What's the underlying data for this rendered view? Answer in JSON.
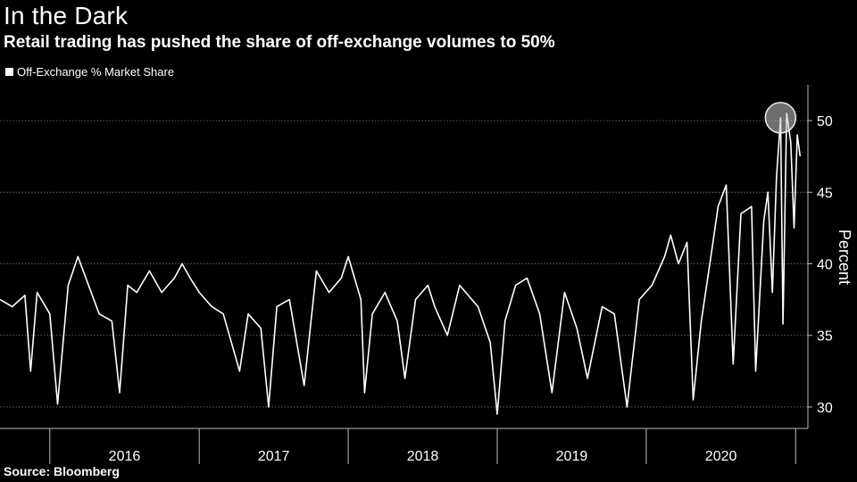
{
  "chart_data": {
    "type": "line",
    "title": "In the Dark",
    "subtitle": "Retail trading has pushed the share of off-exchange volumes to 50%",
    "ylabel": "Percent",
    "xlabel": "",
    "ylim": [
      28.5,
      52.5
    ],
    "yticks": [
      30,
      35,
      40,
      45,
      50
    ],
    "x_categories": [
      "2016",
      "2017",
      "2018",
      "2019",
      "2020"
    ],
    "x_range": [
      "2015-09-01",
      "2021-01-31"
    ],
    "grid": true,
    "legend_position": "top-left",
    "highlight": {
      "date": "2020-11-25",
      "value": 50.2
    },
    "series": [
      {
        "name": "Off-Exchange % Market Share",
        "color": "#ffffff",
        "points": [
          [
            "2015-09-01",
            37.5
          ],
          [
            "2015-10-01",
            37.0
          ],
          [
            "2015-11-01",
            37.8
          ],
          [
            "2015-11-15",
            32.5
          ],
          [
            "2015-12-01",
            38.0
          ],
          [
            "2016-01-01",
            36.5
          ],
          [
            "2016-01-20",
            30.2
          ],
          [
            "2016-02-15",
            38.5
          ],
          [
            "2016-03-10",
            40.5
          ],
          [
            "2016-04-01",
            38.8
          ],
          [
            "2016-05-01",
            36.5
          ],
          [
            "2016-06-01",
            36.0
          ],
          [
            "2016-06-20",
            31.0
          ],
          [
            "2016-07-10",
            38.5
          ],
          [
            "2016-08-01",
            38.0
          ],
          [
            "2016-09-01",
            39.5
          ],
          [
            "2016-10-01",
            38.0
          ],
          [
            "2016-11-01",
            39.0
          ],
          [
            "2016-11-20",
            40.0
          ],
          [
            "2016-12-10",
            39.0
          ],
          [
            "2017-01-01",
            38.0
          ],
          [
            "2017-02-01",
            37.0
          ],
          [
            "2017-03-01",
            36.5
          ],
          [
            "2017-04-10",
            32.5
          ],
          [
            "2017-05-01",
            36.5
          ],
          [
            "2017-06-01",
            35.5
          ],
          [
            "2017-06-20",
            30.0
          ],
          [
            "2017-07-10",
            37.0
          ],
          [
            "2017-08-10",
            37.5
          ],
          [
            "2017-09-15",
            31.5
          ],
          [
            "2017-10-15",
            39.5
          ],
          [
            "2017-11-15",
            38.0
          ],
          [
            "2017-12-15",
            39.0
          ],
          [
            "2018-01-01",
            40.5
          ],
          [
            "2018-02-01",
            37.5
          ],
          [
            "2018-02-10",
            31.0
          ],
          [
            "2018-03-01",
            36.5
          ],
          [
            "2018-04-01",
            38.0
          ],
          [
            "2018-05-01",
            36.0
          ],
          [
            "2018-05-20",
            32.0
          ],
          [
            "2018-06-15",
            37.5
          ],
          [
            "2018-07-15",
            38.5
          ],
          [
            "2018-08-01",
            37.0
          ],
          [
            "2018-09-01",
            35.0
          ],
          [
            "2018-10-01",
            38.5
          ],
          [
            "2018-11-15",
            37.0
          ],
          [
            "2018-12-15",
            34.5
          ],
          [
            "2019-01-01",
            29.5
          ],
          [
            "2019-01-20",
            36.0
          ],
          [
            "2019-02-15",
            38.5
          ],
          [
            "2019-03-15",
            39.0
          ],
          [
            "2019-04-15",
            36.5
          ],
          [
            "2019-05-15",
            31.0
          ],
          [
            "2019-06-15",
            38.0
          ],
          [
            "2019-07-15",
            35.5
          ],
          [
            "2019-08-10",
            32.0
          ],
          [
            "2019-09-15",
            37.0
          ],
          [
            "2019-10-15",
            36.5
          ],
          [
            "2019-11-15",
            30.0
          ],
          [
            "2019-12-15",
            37.5
          ],
          [
            "2020-01-15",
            38.5
          ],
          [
            "2020-02-15",
            40.5
          ],
          [
            "2020-03-01",
            42.0
          ],
          [
            "2020-03-20",
            40.0
          ],
          [
            "2020-04-10",
            41.5
          ],
          [
            "2020-04-25",
            30.5
          ],
          [
            "2020-05-15",
            36.0
          ],
          [
            "2020-06-10",
            41.0
          ],
          [
            "2020-06-25",
            44.0
          ],
          [
            "2020-07-15",
            45.5
          ],
          [
            "2020-08-01",
            33.0
          ],
          [
            "2020-08-20",
            43.5
          ],
          [
            "2020-09-15",
            44.0
          ],
          [
            "2020-09-25",
            32.5
          ],
          [
            "2020-10-15",
            43.0
          ],
          [
            "2020-10-25",
            45.0
          ],
          [
            "2020-11-05",
            38.0
          ],
          [
            "2020-11-15",
            46.0
          ],
          [
            "2020-11-25",
            50.2
          ],
          [
            "2020-12-01",
            35.8
          ],
          [
            "2020-12-10",
            50.5
          ],
          [
            "2020-12-20",
            48.5
          ],
          [
            "2020-12-28",
            42.5
          ],
          [
            "2021-01-05",
            49.0
          ],
          [
            "2021-01-12",
            47.5
          ]
        ]
      }
    ]
  },
  "header": {
    "title": "In the Dark",
    "subtitle": "Retail trading has pushed the share of off-exchange volumes to 50%"
  },
  "legend": {
    "label": "Off-Exchange % Market Share"
  },
  "footer": {
    "source": "Source: Bloomberg"
  }
}
